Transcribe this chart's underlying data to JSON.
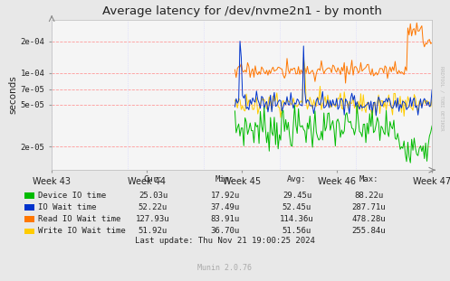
{
  "title": "Average latency for /dev/nvme2n1 - by month",
  "ylabel": "seconds",
  "background_color": "#e8e8e8",
  "plot_background": "#f5f5f5",
  "grid_color_h": "#ff9999",
  "grid_color_v": "#ccccff",
  "weeks": [
    "Week 43",
    "Week 44",
    "Week 45",
    "Week 46",
    "Week 47"
  ],
  "ylim_log_min": 1.2e-05,
  "ylim_log_max": 0.00032,
  "yticks": [
    2e-05,
    5e-05,
    7e-05,
    0.0001,
    0.0002
  ],
  "ytick_labels": [
    "2e-05",
    "5e-05",
    "7e-05",
    "1e-04",
    "2e-04"
  ],
  "colors": {
    "device_io": "#00bb00",
    "io_wait": "#0033cc",
    "read_io_wait": "#ff7700",
    "write_io_wait": "#ffcc00"
  },
  "legend_table": {
    "headers": [
      "Cur:",
      "Min:",
      "Avg:",
      "Max:"
    ],
    "rows": [
      [
        "Device IO time",
        "25.03u",
        "17.92u",
        "29.45u",
        "88.22u"
      ],
      [
        "IO Wait time",
        "52.22u",
        "37.49u",
        "52.45u",
        "287.71u"
      ],
      [
        "Read IO Wait time",
        "127.93u",
        "83.91u",
        "114.36u",
        "478.28u"
      ],
      [
        "Write IO Wait time",
        "51.92u",
        "36.70u",
        "51.56u",
        "255.84u"
      ]
    ],
    "row_colors": [
      "#00bb00",
      "#0033cc",
      "#ff7700",
      "#ffcc00"
    ]
  },
  "last_update": "Last update: Thu Nov 21 19:00:25 2024",
  "munin_version": "Munin 2.0.76",
  "rrdtool_label": "RRDTOOL / TOBI OETIKER",
  "title_color": "#222222",
  "text_color": "#222222",
  "axis_margin_color": "#cccccc"
}
